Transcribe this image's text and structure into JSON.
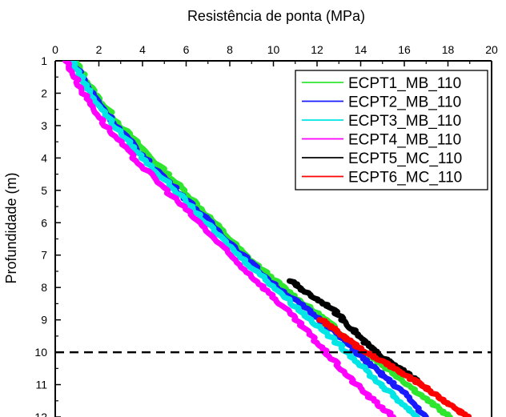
{
  "chart_data": {
    "type": "line",
    "title": "",
    "xlabel": "Resistência de ponta (MPa)",
    "ylabel": "Profundidade (m)",
    "xlim": [
      0,
      20
    ],
    "ylim": [
      1,
      12
    ],
    "y_inverted": true,
    "x_axis_position": "top",
    "x_ticks": [
      "0",
      "2",
      "4",
      "6",
      "8",
      "10",
      "12",
      "14",
      "16",
      "18",
      "20"
    ],
    "y_ticks": [
      "1",
      "2",
      "3",
      "4",
      "5",
      "6",
      "7",
      "8",
      "9",
      "10",
      "11",
      "12"
    ],
    "grid": false,
    "legend_position": "top-right",
    "reference_line": {
      "axis": "y",
      "value": 10,
      "style": "dashed",
      "color": "#000000"
    },
    "series": [
      {
        "name": "ECPT1_MB_110",
        "color": "#2ee62e",
        "points": [
          [
            0.9,
            1.0
          ],
          [
            1.8,
            2.0
          ],
          [
            3.0,
            3.0
          ],
          [
            4.4,
            4.0
          ],
          [
            5.9,
            5.0
          ],
          [
            7.3,
            6.0
          ],
          [
            8.7,
            7.0
          ],
          [
            10.1,
            7.8
          ],
          [
            11.2,
            8.4
          ],
          [
            12.4,
            9.0
          ],
          [
            13.6,
            9.7
          ],
          [
            14.6,
            10.2
          ],
          [
            15.8,
            10.8
          ],
          [
            17.1,
            11.5
          ],
          [
            18.1,
            12.0
          ]
        ]
      },
      {
        "name": "ECPT2_MB_110",
        "color": "#1a1aff",
        "points": [
          [
            0.8,
            1.0
          ],
          [
            1.7,
            2.0
          ],
          [
            2.8,
            3.0
          ],
          [
            4.1,
            4.0
          ],
          [
            5.6,
            5.0
          ],
          [
            7.1,
            6.0
          ],
          [
            8.6,
            7.0
          ],
          [
            10.0,
            7.9
          ],
          [
            11.4,
            8.6
          ],
          [
            12.7,
            9.3
          ],
          [
            13.8,
            10.0
          ],
          [
            14.8,
            10.6
          ],
          [
            15.9,
            11.2
          ],
          [
            17.0,
            12.0
          ]
        ]
      },
      {
        "name": "ECPT3_MB_110",
        "color": "#00e5e5",
        "points": [
          [
            0.8,
            1.0
          ],
          [
            1.6,
            2.0
          ],
          [
            2.7,
            3.0
          ],
          [
            4.0,
            4.0
          ],
          [
            5.5,
            5.0
          ],
          [
            6.9,
            6.0
          ],
          [
            8.4,
            7.0
          ],
          [
            9.9,
            7.9
          ],
          [
            11.2,
            8.7
          ],
          [
            12.4,
            9.4
          ],
          [
            13.4,
            10.0
          ],
          [
            14.6,
            10.8
          ],
          [
            15.6,
            11.4
          ],
          [
            16.6,
            12.0
          ]
        ]
      },
      {
        "name": "ECPT4_MB_110",
        "color": "#ff00ff",
        "points": [
          [
            0.5,
            1.0
          ],
          [
            1.3,
            2.0
          ],
          [
            2.3,
            3.0
          ],
          [
            3.6,
            4.0
          ],
          [
            5.1,
            5.0
          ],
          [
            6.6,
            6.0
          ],
          [
            8.0,
            7.0
          ],
          [
            9.4,
            7.9
          ],
          [
            10.6,
            8.7
          ],
          [
            11.6,
            9.4
          ],
          [
            12.4,
            10.0
          ],
          [
            13.5,
            10.8
          ],
          [
            14.6,
            11.5
          ],
          [
            15.5,
            12.0
          ]
        ]
      },
      {
        "name": "ECPT5_MC_110",
        "color": "#000000",
        "points": [
          [
            10.8,
            7.8
          ],
          [
            11.6,
            8.2
          ],
          [
            12.6,
            8.6
          ],
          [
            13.5,
            9.2
          ],
          [
            14.2,
            9.7
          ],
          [
            14.7,
            10.0
          ],
          [
            15.3,
            10.3
          ],
          [
            16.0,
            10.6
          ],
          [
            16.6,
            10.9
          ]
        ]
      },
      {
        "name": "ECPT6_MC_110",
        "color": "#ff0000",
        "points": [
          [
            12.2,
            9.0
          ],
          [
            13.0,
            9.4
          ],
          [
            13.8,
            9.8
          ],
          [
            14.5,
            10.1
          ],
          [
            15.3,
            10.4
          ],
          [
            16.0,
            10.7
          ],
          [
            16.8,
            11.0
          ],
          [
            17.6,
            11.4
          ],
          [
            18.5,
            11.8
          ],
          [
            18.9,
            12.0
          ]
        ]
      }
    ]
  }
}
